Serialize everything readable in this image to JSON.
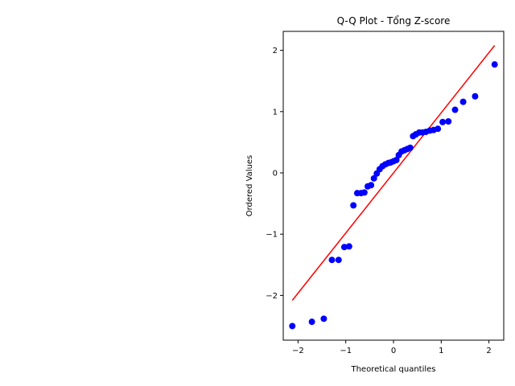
{
  "chart_data": {
    "type": "scatter",
    "title": "Q-Q Plot - Tổng Z-score",
    "xlabel": "Theoretical quantiles",
    "ylabel": "Ordered Values",
    "xlim": [
      -2.31,
      2.31
    ],
    "ylim": [
      -2.73,
      2.31
    ],
    "xticks": [
      -2,
      -1,
      0,
      1,
      2
    ],
    "xtick_labels": [
      "−2",
      "−1",
      "0",
      "1",
      "2"
    ],
    "yticks": [
      -2,
      -1,
      0,
      1,
      2
    ],
    "ytick_labels": [
      "−2",
      "−1",
      "0",
      "1",
      "2"
    ],
    "grid": false,
    "colors": {
      "points": "#0000ff",
      "fit_line": "#ff0000"
    },
    "series": [
      {
        "kind": "points",
        "x": [
          -2.12,
          -1.71,
          -1.46,
          -1.29,
          -1.15,
          -1.03,
          -0.93,
          -0.84,
          -0.76,
          -0.68,
          -0.61,
          -0.54,
          -0.47,
          -0.41,
          -0.35,
          -0.29,
          -0.23,
          -0.17,
          -0.11,
          -0.06,
          0.0,
          0.06,
          0.11,
          0.17,
          0.23,
          0.29,
          0.35,
          0.41,
          0.47,
          0.54,
          0.61,
          0.68,
          0.76,
          0.84,
          0.93,
          1.03,
          1.15,
          1.29,
          1.46,
          1.71,
          2.12
        ],
        "y": [
          -2.5,
          -2.43,
          -2.38,
          -1.42,
          -1.42,
          -1.21,
          -1.2,
          -0.53,
          -0.33,
          -0.33,
          -0.32,
          -0.22,
          -0.2,
          -0.09,
          -0.01,
          0.06,
          0.11,
          0.14,
          0.16,
          0.17,
          0.19,
          0.21,
          0.29,
          0.35,
          0.37,
          0.39,
          0.41,
          0.6,
          0.63,
          0.66,
          0.66,
          0.67,
          0.69,
          0.7,
          0.72,
          0.83,
          0.84,
          1.03,
          1.16,
          1.25,
          1.77
        ]
      },
      {
        "kind": "fit_line",
        "x": [
          -2.12,
          2.12
        ],
        "y": [
          -2.08,
          2.08
        ]
      }
    ]
  }
}
